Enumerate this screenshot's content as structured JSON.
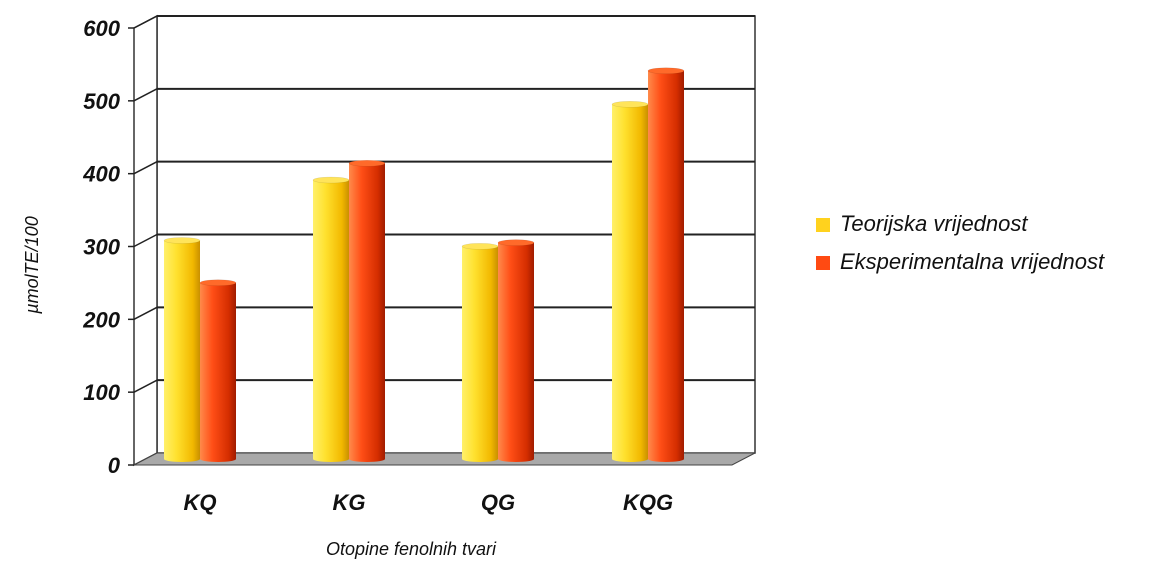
{
  "chart_data": {
    "type": "bar",
    "title": "",
    "xlabel": "Otopine fenolnih tvari",
    "ylabel": "µmolTE/100",
    "categories": [
      "KQ",
      "KG",
      "QG",
      "KQG"
    ],
    "series": [
      {
        "name": "Teorijska vrijednost",
        "color": "#ffd21e",
        "values": [
          300,
          383,
          292,
          487
        ]
      },
      {
        "name": "Eksperimentalna vrijednost",
        "color": "#ff4a12",
        "values": [
          242,
          406,
          297,
          533
        ]
      }
    ],
    "ylim": [
      0,
      600
    ],
    "yticks": [
      "0",
      "100",
      "200",
      "300",
      "400",
      "500",
      "600"
    ],
    "grid": true,
    "legend_position": "right"
  }
}
